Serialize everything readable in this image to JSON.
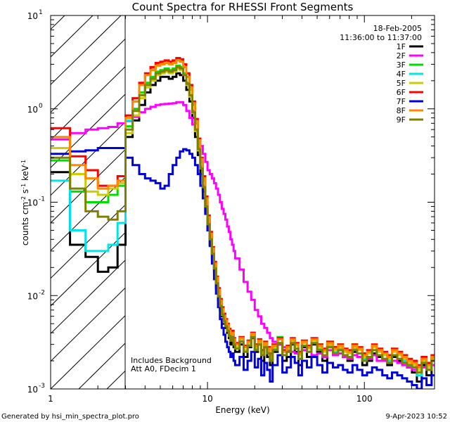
{
  "chart_data": {
    "type": "line",
    "title": "Count Spectra for RHESSI Front Segments",
    "xlabel": "Energy (keV)",
    "ylabel": "counts cm^-2 s^-1 keV^-1",
    "ylabel_parts": {
      "base": "counts cm",
      "sup1": "-2",
      "mid": " s",
      "sup2": "-1",
      "end": " keV",
      "sup3": "-1"
    },
    "xscale": "log",
    "yscale": "log",
    "xlim": [
      1,
      280
    ],
    "ylim": [
      0.001,
      10
    ],
    "x_ticks": [
      {
        "value": 1,
        "label": "1"
      },
      {
        "value": 10,
        "label": "10"
      },
      {
        "value": 100,
        "label": "100"
      }
    ],
    "y_ticks": [
      {
        "value": 0.001,
        "base": "10",
        "exp": "-3"
      },
      {
        "value": 0.01,
        "base": "10",
        "exp": "-2"
      },
      {
        "value": 0.1,
        "base": "10",
        "exp": "-1"
      },
      {
        "value": 1,
        "base": "10",
        "exp": "0"
      },
      {
        "value": 10,
        "base": "10",
        "exp": "1"
      }
    ],
    "date": "18-Feb-2005",
    "time_range": "11:36:00 to 11:37:00",
    "annotations": [
      "Includes Background",
      "Att A0, FDecim 1"
    ],
    "attenuator_cutoff_keV": 3,
    "legend_position": "top-right",
    "energy_edges": [
      1,
      1.33,
      1.67,
      2,
      2.33,
      2.67,
      3,
      3.33,
      3.67,
      4,
      4.33,
      4.67,
      5,
      5.33,
      5.67,
      6,
      6.33,
      6.67,
      7,
      7.33,
      7.67,
      8,
      8.33,
      8.67,
      9,
      9.33,
      9.67,
      10,
      10.33,
      10.67,
      11,
      11.33,
      11.67,
      12,
      12.33,
      12.67,
      13,
      13.33,
      13.67,
      14,
      14.33,
      14.67,
      15,
      16,
      17,
      18,
      19,
      20,
      21,
      22,
      23,
      24,
      25,
      26,
      28,
      30,
      32,
      34,
      36,
      38,
      40,
      43,
      46,
      50,
      54,
      58,
      63,
      68,
      73,
      78,
      84,
      90,
      97,
      104,
      112,
      120,
      130,
      140,
      150,
      162,
      174,
      187,
      201,
      216,
      232,
      249,
      268,
      280
    ],
    "series": [
      {
        "name": "1F",
        "color": "#000000",
        "values": [
          0.21,
          0.035,
          0.026,
          0.018,
          0.02,
          0.035,
          0.5,
          0.75,
          1.1,
          1.5,
          1.8,
          2.0,
          2.2,
          2.2,
          2.1,
          2.2,
          2.4,
          2.3,
          2.0,
          1.6,
          1.2,
          0.8,
          0.5,
          0.32,
          0.2,
          0.13,
          0.08,
          0.05,
          0.035,
          0.025,
          0.018,
          0.012,
          0.009,
          0.007,
          0.006,
          0.005,
          0.0045,
          0.004,
          0.0035,
          0.003,
          0.0032,
          0.0028,
          0.0025,
          0.003,
          0.0022,
          0.0028,
          0.0035,
          0.0025,
          0.003,
          0.002,
          0.0028,
          0.0022,
          0.0018,
          0.0025,
          0.003,
          0.002,
          0.0022,
          0.003,
          0.0025,
          0.0018,
          0.0028,
          0.0022,
          0.003,
          0.0025,
          0.002,
          0.0028,
          0.0024,
          0.0026,
          0.0022,
          0.002,
          0.0025,
          0.0022,
          0.0018,
          0.002,
          0.0024,
          0.0022,
          0.002,
          0.0018,
          0.0022,
          0.002,
          0.0019,
          0.0017,
          0.0015,
          0.0012,
          0.0018,
          0.0014,
          0.002
        ]
      },
      {
        "name": "2F",
        "color": "#ff00ff",
        "values": [
          0.47,
          0.55,
          0.6,
          0.62,
          0.64,
          0.7,
          0.74,
          0.82,
          0.92,
          1.0,
          1.05,
          1.1,
          1.12,
          1.13,
          1.14,
          1.15,
          1.18,
          1.18,
          1.1,
          0.95,
          0.8,
          0.68,
          0.58,
          0.48,
          0.4,
          0.33,
          0.27,
          0.22,
          0.2,
          0.18,
          0.16,
          0.14,
          0.12,
          0.1,
          0.085,
          0.075,
          0.065,
          0.055,
          0.048,
          0.04,
          0.035,
          0.03,
          0.025,
          0.019,
          0.014,
          0.011,
          0.009,
          0.007,
          0.006,
          0.005,
          0.0045,
          0.004,
          0.0035,
          0.0032,
          0.003,
          0.0028,
          0.0026,
          0.0025,
          0.0024,
          0.0023,
          0.0026,
          0.0025,
          0.0023,
          0.0024,
          0.0022,
          0.0026,
          0.0023,
          0.0024,
          0.0022,
          0.0021,
          0.0023,
          0.0022,
          0.002,
          0.0021,
          0.0023,
          0.002,
          0.002,
          0.0019,
          0.002,
          0.0019,
          0.0018,
          0.0017,
          0.0016,
          0.0015,
          0.0017,
          0.0016,
          0.0018
        ]
      },
      {
        "name": "3F",
        "color": "#00dd00",
        "values": [
          0.28,
          0.13,
          0.1,
          0.1,
          0.12,
          0.15,
          0.65,
          1.0,
          1.5,
          1.9,
          2.2,
          2.5,
          2.6,
          2.7,
          2.6,
          2.7,
          2.9,
          2.8,
          2.4,
          1.9,
          1.4,
          0.95,
          0.6,
          0.38,
          0.24,
          0.15,
          0.09,
          0.06,
          0.04,
          0.028,
          0.02,
          0.014,
          0.01,
          0.008,
          0.0065,
          0.0055,
          0.005,
          0.0045,
          0.004,
          0.0035,
          0.0038,
          0.0032,
          0.003,
          0.0035,
          0.0028,
          0.0032,
          0.004,
          0.003,
          0.0034,
          0.0025,
          0.0032,
          0.0028,
          0.0024,
          0.003,
          0.0036,
          0.0026,
          0.0028,
          0.0034,
          0.003,
          0.0024,
          0.0032,
          0.0028,
          0.0034,
          0.003,
          0.0026,
          0.0032,
          0.0028,
          0.003,
          0.0026,
          0.0025,
          0.003,
          0.0027,
          0.0023,
          0.0025,
          0.0029,
          0.0026,
          0.0024,
          0.0022,
          0.0026,
          0.0024,
          0.0022,
          0.002,
          0.0019,
          0.0017,
          0.0021,
          0.0018,
          0.0022
        ]
      },
      {
        "name": "4F",
        "color": "#00e5e5",
        "values": [
          0.17,
          0.05,
          0.03,
          0.03,
          0.035,
          0.06,
          0.75,
          1.2,
          1.8,
          2.3,
          2.7,
          3.0,
          3.1,
          3.2,
          3.1,
          3.2,
          3.4,
          3.3,
          2.8,
          2.2,
          1.6,
          1.1,
          0.7,
          0.43,
          0.27,
          0.17,
          0.1,
          0.065,
          0.043,
          0.03,
          0.021,
          0.015,
          0.011,
          0.0085,
          0.007,
          0.006,
          0.0052,
          0.0046,
          0.0041,
          0.0036,
          0.0038,
          0.0032,
          0.0028,
          0.0033,
          0.0026,
          0.003,
          0.0036,
          0.0027,
          0.0031,
          0.0023,
          0.0029,
          0.0025,
          0.0021,
          0.0027,
          0.0031,
          0.0023,
          0.0025,
          0.0031,
          0.0027,
          0.0021,
          0.0029,
          0.0025,
          0.0031,
          0.0027,
          0.0023,
          0.0029,
          0.0025,
          0.0027,
          0.0023,
          0.0022,
          0.0027,
          0.0024,
          0.0021,
          0.0022,
          0.0026,
          0.0023,
          0.0021,
          0.002,
          0.0023,
          0.0021,
          0.002,
          0.0018,
          0.0017,
          0.0014,
          0.0019,
          0.0016,
          0.002
        ]
      },
      {
        "name": "5F",
        "color": "#cccc00",
        "values": [
          0.38,
          0.2,
          0.13,
          0.12,
          0.14,
          0.16,
          0.55,
          0.85,
          1.3,
          1.7,
          2.0,
          2.3,
          2.4,
          2.5,
          2.4,
          2.5,
          2.7,
          2.6,
          2.3,
          1.8,
          1.35,
          0.9,
          0.58,
          0.36,
          0.23,
          0.14,
          0.088,
          0.057,
          0.039,
          0.027,
          0.019,
          0.013,
          0.0095,
          0.0075,
          0.0062,
          0.0052,
          0.0047,
          0.0042,
          0.0037,
          0.0033,
          0.0036,
          0.003,
          0.0028,
          0.0034,
          0.0026,
          0.003,
          0.0038,
          0.0028,
          0.0032,
          0.0024,
          0.003,
          0.0026,
          0.0022,
          0.0028,
          0.0034,
          0.0025,
          0.0027,
          0.0033,
          0.0029,
          0.0023,
          0.0031,
          0.0027,
          0.0033,
          0.0028,
          0.0025,
          0.003,
          0.0026,
          0.0028,
          0.0025,
          0.0024,
          0.0028,
          0.0026,
          0.0022,
          0.0024,
          0.0028,
          0.0025,
          0.0023,
          0.0021,
          0.0025,
          0.0023,
          0.0021,
          0.0019,
          0.0018,
          0.0016,
          0.002,
          0.0017,
          0.0021
        ]
      },
      {
        "name": "6F",
        "color": "#ff0000",
        "values": [
          0.62,
          0.31,
          0.22,
          0.15,
          0.15,
          0.19,
          0.85,
          1.3,
          1.9,
          2.4,
          2.8,
          3.1,
          3.2,
          3.3,
          3.2,
          3.3,
          3.5,
          3.4,
          3.0,
          2.4,
          1.8,
          1.2,
          0.78,
          0.48,
          0.3,
          0.19,
          0.115,
          0.072,
          0.048,
          0.033,
          0.023,
          0.016,
          0.012,
          0.0092,
          0.0075,
          0.0064,
          0.0056,
          0.005,
          0.0044,
          0.0039,
          0.0042,
          0.0035,
          0.0031,
          0.0036,
          0.0029,
          0.0033,
          0.004,
          0.003,
          0.0034,
          0.0026,
          0.0032,
          0.0028,
          0.0024,
          0.003,
          0.0035,
          0.0026,
          0.0029,
          0.0035,
          0.0031,
          0.0025,
          0.0033,
          0.0029,
          0.0035,
          0.003,
          0.0027,
          0.0032,
          0.0028,
          0.003,
          0.0027,
          0.0026,
          0.003,
          0.0028,
          0.0024,
          0.0026,
          0.003,
          0.0027,
          0.0025,
          0.0023,
          0.0027,
          0.0025,
          0.0023,
          0.0021,
          0.002,
          0.0018,
          0.0022,
          0.0019,
          0.0023
        ]
      },
      {
        "name": "7F",
        "color": "#0000dd",
        "values": [
          0.33,
          0.35,
          0.36,
          0.38,
          0.38,
          0.38,
          0.3,
          0.25,
          0.2,
          0.18,
          0.17,
          0.16,
          0.14,
          0.15,
          0.2,
          0.25,
          0.3,
          0.35,
          0.37,
          0.36,
          0.33,
          0.3,
          0.25,
          0.2,
          0.15,
          0.11,
          0.075,
          0.05,
          0.034,
          0.022,
          0.015,
          0.0105,
          0.0075,
          0.0056,
          0.0045,
          0.0038,
          0.0032,
          0.0028,
          0.0025,
          0.0022,
          0.0024,
          0.002,
          0.0018,
          0.0022,
          0.0016,
          0.002,
          0.0025,
          0.0017,
          0.0021,
          0.0014,
          0.0019,
          0.0016,
          0.0012,
          0.0018,
          0.0023,
          0.0015,
          0.0017,
          0.0022,
          0.0019,
          0.0014,
          0.002,
          0.0017,
          0.0022,
          0.0018,
          0.0015,
          0.0019,
          0.0017,
          0.0018,
          0.0016,
          0.0015,
          0.0018,
          0.0016,
          0.0014,
          0.0015,
          0.0017,
          0.0016,
          0.0014,
          0.0013,
          0.0015,
          0.0014,
          0.0013,
          0.0012,
          0.0011,
          0.001,
          0.0013,
          0.0011,
          0.0014
        ]
      },
      {
        "name": "8F",
        "color": "#ff8800",
        "values": [
          0.5,
          0.25,
          0.18,
          0.14,
          0.15,
          0.17,
          0.8,
          1.2,
          1.8,
          2.3,
          2.6,
          2.9,
          3.0,
          3.1,
          3.0,
          3.1,
          3.3,
          3.2,
          2.8,
          2.2,
          1.7,
          1.15,
          0.74,
          0.46,
          0.29,
          0.18,
          0.11,
          0.069,
          0.046,
          0.032,
          0.022,
          0.0155,
          0.0115,
          0.0088,
          0.0072,
          0.0061,
          0.0054,
          0.0048,
          0.0042,
          0.0037,
          0.004,
          0.0034,
          0.003,
          0.0035,
          0.0028,
          0.0032,
          0.0039,
          0.0029,
          0.0033,
          0.0025,
          0.0031,
          0.0027,
          0.0023,
          0.0029,
          0.0034,
          0.0025,
          0.0028,
          0.0034,
          0.003,
          0.0024,
          0.0032,
          0.0028,
          0.0034,
          0.0029,
          0.0026,
          0.0031,
          0.0027,
          0.0029,
          0.0026,
          0.0025,
          0.0029,
          0.0027,
          0.0023,
          0.0025,
          0.0029,
          0.0026,
          0.0024,
          0.0022,
          0.0026,
          0.0024,
          0.0022,
          0.002,
          0.0019,
          0.0017,
          0.0021,
          0.0018,
          0.0022
        ]
      },
      {
        "name": "9F",
        "color": "#808000",
        "values": [
          0.3,
          0.14,
          0.08,
          0.07,
          0.065,
          0.08,
          0.6,
          0.95,
          1.4,
          1.8,
          2.1,
          2.4,
          2.5,
          2.6,
          2.5,
          2.6,
          2.8,
          2.7,
          2.3,
          1.85,
          1.4,
          0.92,
          0.6,
          0.37,
          0.23,
          0.145,
          0.09,
          0.058,
          0.04,
          0.028,
          0.0195,
          0.0135,
          0.0098,
          0.0077,
          0.0063,
          0.0053,
          0.0047,
          0.0042,
          0.0037,
          0.0033,
          0.0036,
          0.003,
          0.0027,
          0.0032,
          0.0025,
          0.0029,
          0.0036,
          0.0026,
          0.003,
          0.0023,
          0.0028,
          0.0024,
          0.002,
          0.0026,
          0.0031,
          0.0023,
          0.0025,
          0.0031,
          0.0027,
          0.0021,
          0.0029,
          0.0025,
          0.0031,
          0.0026,
          0.0023,
          0.0028,
          0.0024,
          0.0026,
          0.0023,
          0.0022,
          0.0026,
          0.0024,
          0.002,
          0.0022,
          0.0026,
          0.0023,
          0.0021,
          0.0019,
          0.0023,
          0.0021,
          0.0019,
          0.0018,
          0.0017,
          0.0015,
          0.0019,
          0.0016,
          0.002
        ]
      }
    ]
  },
  "footer": {
    "generated_by": "Generated by hsi_min_spectra_plot.pro",
    "timestamp": "9-Apr-2023 10:52"
  }
}
